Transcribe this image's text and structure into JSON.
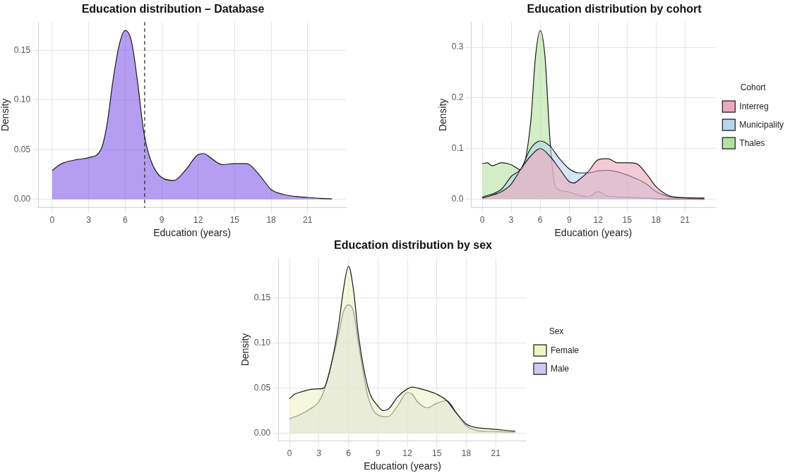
{
  "chart_data": [
    {
      "type": "area",
      "title": "Education distribution – Database",
      "xlabel": "Education (years)",
      "ylabel": "Density",
      "grid": true,
      "legend": false,
      "xlim": [
        -1.15,
        24.15
      ],
      "xticks": [
        0,
        3,
        6,
        9,
        12,
        15,
        18,
        21
      ],
      "ylim": [
        -0.0085,
        0.1785
      ],
      "yticks": [
        {
          "value": 0,
          "label": "0.00"
        },
        {
          "value": 0.05,
          "label": "0.05"
        },
        {
          "value": 0.1,
          "label": "0.10"
        },
        {
          "value": 0.15,
          "label": "0.15"
        }
      ],
      "ref_lines": [
        {
          "axis": "x",
          "value": 7.6,
          "line_style": "dashed",
          "color": "#222222"
        }
      ],
      "series": [
        {
          "color": "#845ee8",
          "x": [
            0,
            0.5,
            1,
            2,
            3,
            4,
            4.5,
            5,
            5.5,
            6,
            6.5,
            7,
            7.5,
            8,
            9,
            10,
            11,
            12,
            12.5,
            13,
            14,
            15,
            16,
            17,
            18,
            19,
            20,
            21,
            22,
            23
          ],
          "values": [
            0.029,
            0.034,
            0.037,
            0.04,
            0.042,
            0.05,
            0.075,
            0.12,
            0.155,
            0.17,
            0.16,
            0.12,
            0.07,
            0.043,
            0.022,
            0.019,
            0.03,
            0.045,
            0.046,
            0.042,
            0.035,
            0.036,
            0.036,
            0.025,
            0.01,
            0.005,
            0.003,
            0.002,
            0.001,
            0.0005
          ]
        }
      ]
    },
    {
      "type": "area",
      "title": "Education distribution by cohort",
      "xlabel": "Education (years)",
      "ylabel": "Density",
      "legend_title": "Cohort",
      "grid": true,
      "legend": "right",
      "xlim": [
        -1.15,
        24.15
      ],
      "xticks": [
        0,
        3,
        6,
        9,
        12,
        15,
        18,
        21
      ],
      "ylim": [
        -0.017,
        0.35
      ],
      "yticks": [
        {
          "value": 0,
          "label": "0.0"
        },
        {
          "value": 0.1,
          "label": "0.1"
        },
        {
          "value": 0.2,
          "label": "0.2"
        },
        {
          "value": 0.3,
          "label": "0.3"
        }
      ],
      "series": [
        {
          "name": "Interreg",
          "color": "#eba9bd",
          "x": [
            0,
            2,
            3,
            4,
            5,
            6,
            7,
            8,
            9,
            9.5,
            10,
            11,
            12,
            13,
            14,
            15,
            16,
            17,
            18,
            19,
            20,
            23
          ],
          "values": [
            0.002,
            0.015,
            0.03,
            0.06,
            0.085,
            0.1,
            0.085,
            0.06,
            0.035,
            0.032,
            0.038,
            0.055,
            0.078,
            0.08,
            0.072,
            0.072,
            0.07,
            0.05,
            0.025,
            0.01,
            0.004,
            0.002
          ]
        },
        {
          "name": "Municipality",
          "color": "#b7d6ee",
          "x": [
            0,
            2,
            3,
            4,
            5,
            6,
            7,
            8,
            9,
            10,
            11,
            12,
            13,
            14,
            15,
            16,
            17,
            18,
            19,
            20,
            23
          ],
          "values": [
            0.004,
            0.02,
            0.045,
            0.06,
            0.1,
            0.115,
            0.105,
            0.08,
            0.06,
            0.052,
            0.052,
            0.056,
            0.057,
            0.054,
            0.048,
            0.04,
            0.03,
            0.015,
            0.007,
            0.003,
            0.002
          ]
        },
        {
          "name": "Thales",
          "color": "#b3e3a0",
          "x": [
            0,
            0.5,
            1,
            2,
            3,
            4,
            5,
            5.5,
            6,
            6.5,
            7,
            7.5,
            8,
            9,
            10,
            11,
            12,
            13,
            15,
            16,
            18,
            23
          ],
          "values": [
            0.07,
            0.072,
            0.066,
            0.072,
            0.068,
            0.058,
            0.15,
            0.28,
            0.333,
            0.28,
            0.12,
            0.03,
            0.018,
            0.014,
            0.008,
            0.005,
            0.015,
            0.006,
            0.004,
            0.003,
            0.001,
            0
          ]
        }
      ]
    },
    {
      "type": "area",
      "title": "Education distribution by sex",
      "xlabel": "Education (years)",
      "ylabel": "Density",
      "legend_title": "Sex",
      "grid": true,
      "legend": "right",
      "xlim": [
        -1.15,
        24.15
      ],
      "xticks": [
        0,
        3,
        6,
        9,
        12,
        15,
        18,
        21
      ],
      "ylim": [
        -0.009,
        0.194
      ],
      "yticks": [
        {
          "value": 0,
          "label": "0.00"
        },
        {
          "value": 0.05,
          "label": "0.05"
        },
        {
          "value": 0.1,
          "label": "0.10"
        },
        {
          "value": 0.15,
          "label": "0.15"
        }
      ],
      "series": [
        {
          "name": "Female",
          "color": "#eef4c4",
          "x": [
            0,
            0.5,
            1,
            2,
            3,
            3.5,
            4,
            5,
            5.5,
            6,
            6.5,
            7,
            8,
            9,
            9.5,
            10,
            11,
            12,
            12.5,
            13,
            14,
            15,
            16,
            17,
            18,
            19,
            20,
            21,
            23
          ],
          "values": [
            0.038,
            0.043,
            0.045,
            0.048,
            0.049,
            0.05,
            0.065,
            0.12,
            0.16,
            0.185,
            0.16,
            0.11,
            0.05,
            0.03,
            0.025,
            0.026,
            0.04,
            0.049,
            0.051,
            0.05,
            0.047,
            0.043,
            0.036,
            0.022,
            0.01,
            0.006,
            0.005,
            0.004,
            0.002
          ]
        },
        {
          "name": "Male",
          "color": "#cfcbee",
          "x": [
            0,
            1,
            2,
            3,
            3.5,
            4,
            5,
            5.5,
            6,
            6.5,
            7,
            8,
            9,
            10,
            11,
            12,
            12.5,
            13,
            14,
            15,
            16,
            17,
            18,
            19,
            20,
            23
          ],
          "values": [
            0.016,
            0.02,
            0.026,
            0.035,
            0.047,
            0.065,
            0.11,
            0.135,
            0.142,
            0.135,
            0.1,
            0.04,
            0.02,
            0.018,
            0.03,
            0.045,
            0.043,
            0.035,
            0.028,
            0.033,
            0.036,
            0.022,
            0.008,
            0.003,
            0.002,
            0.001
          ]
        }
      ]
    }
  ]
}
